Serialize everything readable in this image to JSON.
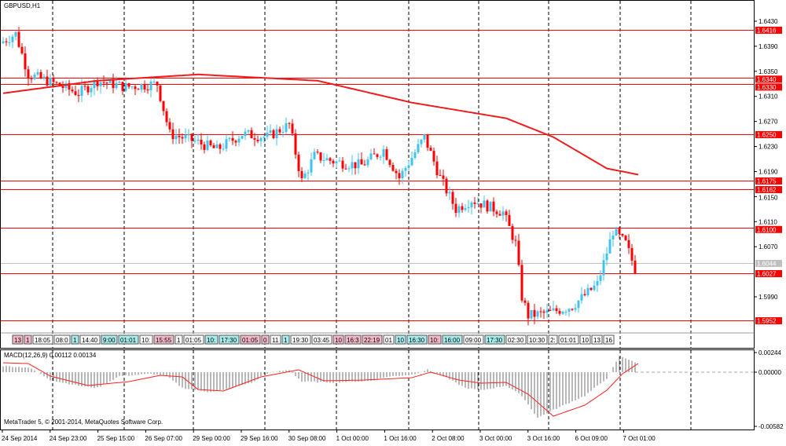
{
  "chart_data": {
    "type": "candlestick",
    "title": "GBPUSD,H1",
    "symbol": "GBPUSD",
    "timeframe": "H1",
    "bars": 202,
    "price_ticks": [
      "1.6430",
      "1.6390",
      "1.6350",
      "1.6310",
      "1.6270",
      "1.6230",
      "1.6190",
      "1.6150",
      "1.6110",
      "1.6070",
      "1.5990"
    ],
    "price_range": [
      1.594,
      1.6465
    ],
    "levels": [
      {
        "label": "1.6416",
        "value": 1.6416
      },
      {
        "label": "1.6340",
        "value": 1.634
      },
      {
        "label": "1.6330",
        "value": 1.633
      },
      {
        "label": "1.6250",
        "value": 1.625
      },
      {
        "label": "1.6175",
        "value": 1.6175
      },
      {
        "label": "1.6162",
        "value": 1.6162
      },
      {
        "label": "1.6100",
        "value": 1.61
      },
      {
        "label": "1.6027",
        "value": 1.6027
      },
      {
        "label": "1.5952",
        "value": 1.5952
      }
    ],
    "bid": {
      "label": "1.6044",
      "value": 1.6044
    },
    "price_path": [
      [
        0,
        1.6395
      ],
      [
        5,
        1.641
      ],
      [
        9,
        1.6345
      ],
      [
        15,
        1.6335
      ],
      [
        25,
        1.6315
      ],
      [
        31,
        1.6335
      ],
      [
        40,
        1.6325
      ],
      [
        50,
        1.633
      ],
      [
        54,
        1.625
      ],
      [
        61,
        1.624
      ],
      [
        69,
        1.6225
      ],
      [
        77,
        1.625
      ],
      [
        85,
        1.6245
      ],
      [
        92,
        1.6265
      ],
      [
        96,
        1.6175
      ],
      [
        100,
        1.6215
      ],
      [
        107,
        1.6205
      ],
      [
        115,
        1.62
      ],
      [
        122,
        1.6225
      ],
      [
        127,
        1.618
      ],
      [
        135,
        1.6245
      ],
      [
        140,
        1.618
      ],
      [
        145,
        1.613
      ],
      [
        150,
        1.6145
      ],
      [
        155,
        1.6135
      ],
      [
        160,
        1.6125
      ],
      [
        164,
        1.6075
      ],
      [
        166,
        1.599
      ],
      [
        168,
        1.596
      ],
      [
        175,
        1.5965
      ],
      [
        182,
        1.5975
      ],
      [
        190,
        1.601
      ],
      [
        195,
        1.6095
      ],
      [
        199,
        1.6075
      ],
      [
        202,
        1.6035
      ]
    ],
    "ma_path": [
      [
        0,
        1.6315
      ],
      [
        30,
        1.6335
      ],
      [
        62,
        1.6345
      ],
      [
        100,
        1.6335
      ],
      [
        130,
        1.63
      ],
      [
        160,
        1.6275
      ],
      [
        175,
        1.6245
      ],
      [
        192,
        1.6195
      ],
      [
        202,
        1.6185
      ]
    ],
    "time_labels": [
      "24 Sep 2014",
      "24 Sep 23:00",
      "25 Sep 15:00",
      "26 Sep 07:00",
      "29 Sep 00:00",
      "29 Sep 16:00",
      "30 Sep 08:00",
      "1 Oct 00:00",
      "1 Oct 16:00",
      "2 Oct 08:00",
      "3 Oct 00:00",
      "3 Oct 16:00",
      "6 Oct 09:00",
      "7 Oct 01:00"
    ],
    "events": [
      {
        "t": "13",
        "c": "pink"
      },
      {
        "t": "1",
        "c": "pink"
      },
      {
        "t": "18:05",
        "c": "white"
      },
      {
        "t": "08:0",
        "c": "white"
      },
      {
        "t": "1",
        "c": "cyan"
      },
      {
        "t": "14:40",
        "c": "white"
      },
      {
        "t": "9:00",
        "c": "cyan"
      },
      {
        "t": "01:01",
        "c": "cyan"
      },
      {
        "t": "10:",
        "c": "white"
      },
      {
        "t": "15:55",
        "c": "pink"
      },
      {
        "t": "1",
        "c": "white"
      },
      {
        "t": "01:05",
        "c": "white"
      },
      {
        "t": "10:",
        "c": "cyan"
      },
      {
        "t": "17:30",
        "c": "cyan"
      },
      {
        "t": "01:05",
        "c": "pink"
      },
      {
        "t": "0",
        "c": "pink"
      },
      {
        "t": "11",
        "c": "white"
      },
      {
        "t": "1",
        "c": "cyan"
      },
      {
        "t": "19:30",
        "c": "white"
      },
      {
        "t": "03:45",
        "c": "white"
      },
      {
        "t": "10",
        "c": "pink"
      },
      {
        "t": "16:3",
        "c": "pink"
      },
      {
        "t": "22:19",
        "c": "pink"
      },
      {
        "t": "01",
        "c": "white"
      },
      {
        "t": "10",
        "c": "cyan"
      },
      {
        "t": "16:30",
        "c": "cyan"
      },
      {
        "t": "10:",
        "c": "pink"
      },
      {
        "t": "16:00",
        "c": "cyan"
      },
      {
        "t": "09:00",
        "c": "white"
      },
      {
        "t": "17:30",
        "c": "cyan"
      },
      {
        "t": "02:30",
        "c": "white"
      },
      {
        "t": "10:30",
        "c": "white"
      },
      {
        "t": "2:",
        "c": "white"
      },
      {
        "t": "01:01",
        "c": "white"
      },
      {
        "t": "10",
        "c": "white"
      },
      {
        "t": "13",
        "c": "white"
      },
      {
        "t": "16",
        "c": "white"
      }
    ],
    "macd": {
      "label": "MACD(12,26,9) 0.00112 0.00134",
      "ticks": [
        "0.00244",
        "0.00000",
        "-0.00582"
      ],
      "hist_path": [
        [
          0,
          80
        ],
        [
          8,
          60
        ],
        [
          11,
          0
        ],
        [
          15,
          -100
        ],
        [
          25,
          -180
        ],
        [
          30,
          -200
        ],
        [
          37,
          -50
        ],
        [
          47,
          -20
        ],
        [
          52,
          -50
        ],
        [
          57,
          -200
        ],
        [
          65,
          -250
        ],
        [
          70,
          -230
        ],
        [
          80,
          -120
        ],
        [
          83,
          -20
        ],
        [
          91,
          30
        ],
        [
          95,
          -120
        ],
        [
          105,
          -130
        ],
        [
          117,
          -110
        ],
        [
          122,
          -60
        ],
        [
          130,
          -30
        ],
        [
          135,
          30
        ],
        [
          140,
          -50
        ],
        [
          147,
          -200
        ],
        [
          152,
          -230
        ],
        [
          160,
          -170
        ],
        [
          165,
          -300
        ],
        [
          170,
          -580
        ],
        [
          175,
          -480
        ],
        [
          185,
          -300
        ],
        [
          192,
          -80
        ],
        [
          196,
          200
        ],
        [
          200,
          150
        ],
        [
          202,
          100
        ]
      ],
      "signal_path": [
        [
          0,
          120
        ],
        [
          8,
          110
        ],
        [
          15,
          -50
        ],
        [
          27,
          -170
        ],
        [
          40,
          -120
        ],
        [
          50,
          -40
        ],
        [
          57,
          -60
        ],
        [
          62,
          -220
        ],
        [
          70,
          -240
        ],
        [
          82,
          -60
        ],
        [
          94,
          30
        ],
        [
          102,
          -110
        ],
        [
          115,
          -100
        ],
        [
          130,
          -70
        ],
        [
          136,
          0
        ],
        [
          145,
          -100
        ],
        [
          152,
          -140
        ],
        [
          160,
          -130
        ],
        [
          167,
          -280
        ],
        [
          175,
          -560
        ],
        [
          185,
          -420
        ],
        [
          192,
          -230
        ],
        [
          197,
          -20
        ],
        [
          202,
          110
        ]
      ]
    },
    "copyright": "MetaTrader 5, © 2001-2014, MetaQuotes Software Corp.",
    "colors": {
      "bull": "#3fc3ee",
      "bear": "#ff0000",
      "level": "#ff0000",
      "ma": "#ee1c1c",
      "hist": "#707070",
      "signal": "#ff2020"
    }
  }
}
